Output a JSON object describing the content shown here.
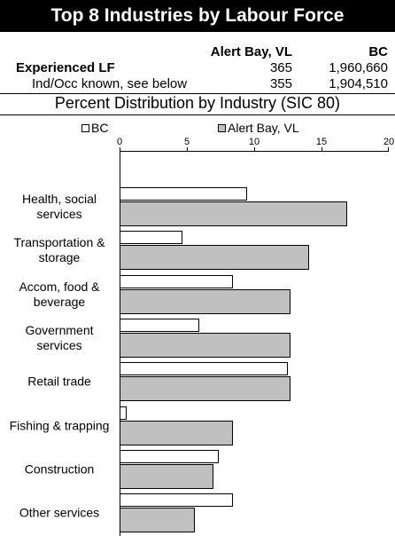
{
  "title": "Top 8 Industries by Labour Force",
  "table": {
    "columns": [
      "Alert Bay, VL",
      "BC"
    ],
    "rows": [
      [
        "Experienced LF",
        "365",
        "1,960,660"
      ],
      [
        "Ind/Occ known, see below",
        "355",
        "1,904,510"
      ]
    ]
  },
  "chart_data": {
    "type": "bar",
    "orientation": "horizontal",
    "title": "Percent Distribution by Industry (SIC 80)",
    "categories": [
      "Health, social services",
      "Transportation & storage",
      "Accom, food & beverage",
      "Government services",
      "Retail trade",
      "Fishing & trapping",
      "Construction",
      "Other services"
    ],
    "series": [
      {
        "name": "BC",
        "color": "#ffffff",
        "values": [
          9.5,
          4.7,
          8.4,
          5.9,
          12.5,
          0.5,
          7.4,
          8.4
        ]
      },
      {
        "name": "Alert Bay, VL",
        "color": "#c0c0c0",
        "values": [
          16.9,
          14.1,
          12.7,
          12.7,
          12.7,
          8.4,
          7.0,
          5.6
        ]
      }
    ],
    "xlim": [
      0,
      20
    ],
    "xticks": [
      0,
      5,
      10,
      15,
      20
    ],
    "legend": "top"
  }
}
